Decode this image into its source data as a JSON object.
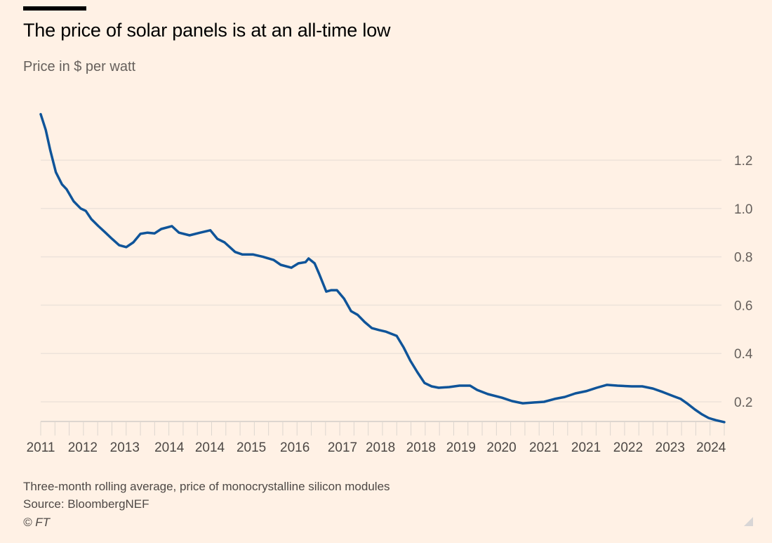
{
  "header": {
    "title": "The price of solar panels is at an all-time low",
    "subtitle": "Price in $ per watt"
  },
  "footer": {
    "note": "Three-month rolling average, price of monocrystalline silicon modules",
    "source": "Source: BloombergNEF",
    "copyright": "© FT"
  },
  "chart_data": {
    "type": "line",
    "title": "The price of solar panels is at an all-time low",
    "ylabel": "Price in $ per watt",
    "xlabel": "",
    "ylim": [
      0.12,
      1.4
    ],
    "xlim": [
      2011.0,
      2024.5
    ],
    "y_ticks": [
      0.2,
      0.4,
      0.6,
      0.8,
      1.0,
      1.2
    ],
    "y_tick_labels": [
      "0.2",
      "0.4",
      "0.6",
      "0.8",
      "1.0",
      "1.2"
    ],
    "x_tick_labels": [
      "2011",
      "2012",
      "2013",
      "2014",
      "2014",
      "2015",
      "2016",
      "2017",
      "2018",
      "2018",
      "2019",
      "2020",
      "2021",
      "2021",
      "2022",
      "2023",
      "2024"
    ],
    "x_ticks": [
      2011.0,
      2011.83,
      2012.66,
      2013.54,
      2014.34,
      2015.16,
      2016.02,
      2016.96,
      2017.71,
      2018.51,
      2019.3,
      2020.1,
      2020.94,
      2021.77,
      2022.6,
      2023.43,
      2024.24
    ],
    "grid": true,
    "line_color": "#0F5499",
    "background": "#FFF1E5",
    "points": [
      [
        2011.0,
        1.39
      ],
      [
        2011.1,
        1.325
      ],
      [
        2011.19,
        1.24
      ],
      [
        2011.3,
        1.15
      ],
      [
        2011.42,
        1.1
      ],
      [
        2011.51,
        1.08
      ],
      [
        2011.65,
        1.03
      ],
      [
        2011.79,
        1.0
      ],
      [
        2011.89,
        0.99
      ],
      [
        2012.0,
        0.956
      ],
      [
        2012.14,
        0.927
      ],
      [
        2012.28,
        0.9
      ],
      [
        2012.41,
        0.874
      ],
      [
        2012.55,
        0.848
      ],
      [
        2012.69,
        0.84
      ],
      [
        2012.83,
        0.86
      ],
      [
        2012.97,
        0.895
      ],
      [
        2013.11,
        0.9
      ],
      [
        2013.25,
        0.897
      ],
      [
        2013.38,
        0.915
      ],
      [
        2013.59,
        0.927
      ],
      [
        2013.73,
        0.9
      ],
      [
        2013.94,
        0.889
      ],
      [
        2014.15,
        0.9
      ],
      [
        2014.35,
        0.91
      ],
      [
        2014.49,
        0.874
      ],
      [
        2014.63,
        0.86
      ],
      [
        2014.84,
        0.82
      ],
      [
        2014.98,
        0.81
      ],
      [
        2015.19,
        0.81
      ],
      [
        2015.39,
        0.8
      ],
      [
        2015.6,
        0.787
      ],
      [
        2015.74,
        0.767
      ],
      [
        2015.95,
        0.755
      ],
      [
        2016.09,
        0.773
      ],
      [
        2016.23,
        0.778
      ],
      [
        2016.29,
        0.793
      ],
      [
        2016.41,
        0.773
      ],
      [
        2016.5,
        0.729
      ],
      [
        2016.64,
        0.656
      ],
      [
        2016.74,
        0.662
      ],
      [
        2016.85,
        0.662
      ],
      [
        2016.99,
        0.627
      ],
      [
        2017.13,
        0.575
      ],
      [
        2017.26,
        0.56
      ],
      [
        2017.4,
        0.53
      ],
      [
        2017.54,
        0.505
      ],
      [
        2017.68,
        0.497
      ],
      [
        2017.82,
        0.49
      ],
      [
        2018.03,
        0.473
      ],
      [
        2018.17,
        0.424
      ],
      [
        2018.3,
        0.37
      ],
      [
        2018.44,
        0.322
      ],
      [
        2018.58,
        0.278
      ],
      [
        2018.72,
        0.264
      ],
      [
        2018.86,
        0.258
      ],
      [
        2019.07,
        0.261
      ],
      [
        2019.27,
        0.267
      ],
      [
        2019.48,
        0.267
      ],
      [
        2019.62,
        0.249
      ],
      [
        2019.83,
        0.232
      ],
      [
        2020.11,
        0.217
      ],
      [
        2020.31,
        0.203
      ],
      [
        2020.52,
        0.194
      ],
      [
        2020.73,
        0.197
      ],
      [
        2020.94,
        0.2
      ],
      [
        2021.15,
        0.212
      ],
      [
        2021.35,
        0.22
      ],
      [
        2021.56,
        0.235
      ],
      [
        2021.77,
        0.244
      ],
      [
        2021.98,
        0.258
      ],
      [
        2022.18,
        0.27
      ],
      [
        2022.39,
        0.267
      ],
      [
        2022.67,
        0.264
      ],
      [
        2022.88,
        0.264
      ],
      [
        2023.09,
        0.255
      ],
      [
        2023.29,
        0.24
      ],
      [
        2023.5,
        0.223
      ],
      [
        2023.64,
        0.212
      ],
      [
        2023.78,
        0.191
      ],
      [
        2023.92,
        0.168
      ],
      [
        2024.06,
        0.148
      ],
      [
        2024.19,
        0.133
      ],
      [
        2024.33,
        0.124
      ],
      [
        2024.5,
        0.116
      ]
    ]
  }
}
